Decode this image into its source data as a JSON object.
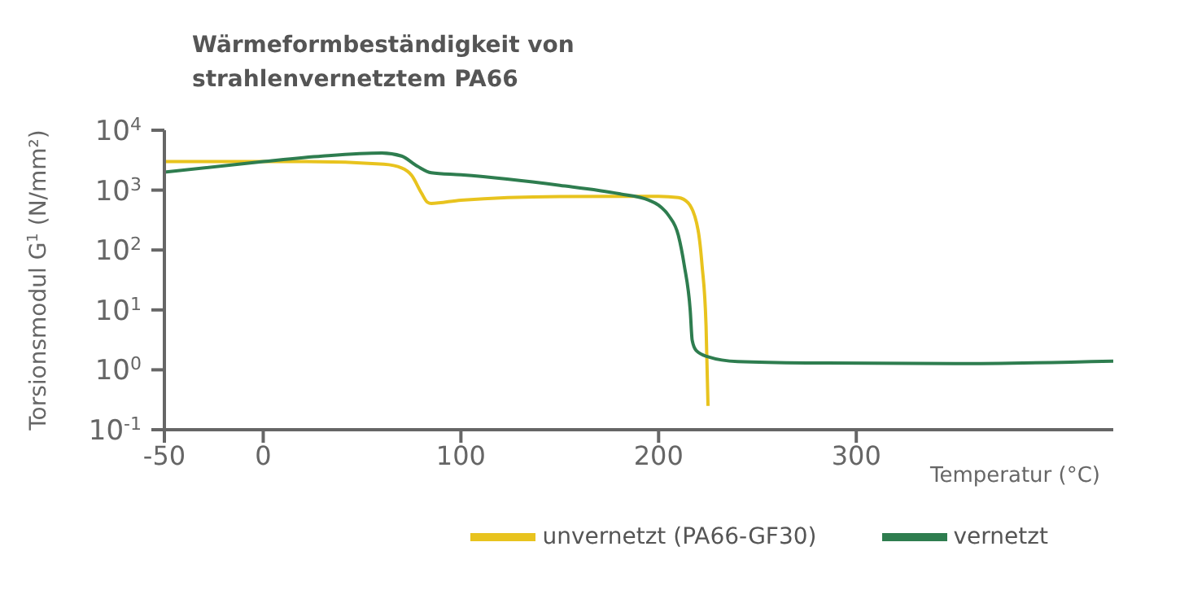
{
  "chart_data": {
    "type": "line",
    "title": "Wärmeformbeständigkeit von\nstrahlenvernetztem PA66",
    "xlabel": "Temperatur (°C)",
    "ylabel": "Torsionsmodul G$^{1}$ (N/mm²)",
    "log": "y",
    "grid": false,
    "legend": "bottom right",
    "marker": "none",
    "line_style": "solid",
    "xlim": [
      -50,
      430
    ],
    "xticks": [
      -50,
      0,
      100,
      200,
      300
    ],
    "ylim": [
      0.1,
      10000
    ],
    "yticks": [
      {
        "value": 0.1,
        "label": "10$^{-1}$"
      },
      {
        "value": 1,
        "label": "10$^{0}$"
      },
      {
        "value": 10,
        "label": "10$^{1}$"
      },
      {
        "value": 100,
        "label": "10$^{2}$"
      },
      {
        "value": 1000,
        "label": "10$^{3}$"
      },
      {
        "value": 10000,
        "label": "10$^{4}$"
      }
    ],
    "series": [
      {
        "name": "unvernetzt (PA66-GF30)",
        "color": "#e8c31e",
        "x": [
          -50,
          0,
          22,
          61,
          70,
          75,
          80,
          83,
          85,
          100,
          150,
          200,
          210,
          215,
          220,
          222,
          224,
          225
        ],
        "values": [
          3000,
          3000,
          3000,
          2700,
          2350,
          1780,
          900,
          630,
          600,
          680,
          780,
          790,
          750,
          610,
          213,
          55,
          5.5,
          0.25
        ]
      },
      {
        "name": "vernetzt",
        "color": "#2e7d4f",
        "x": [
          -50,
          0,
          30,
          60,
          70,
          78,
          85,
          100,
          150,
          180,
          195,
          200,
          205,
          210,
          213,
          216,
          217,
          219,
          225,
          240,
          275,
          350,
          430
        ],
        "values": [
          2000,
          3000,
          3700,
          4150,
          3700,
          2500,
          1950,
          1800,
          1200,
          870,
          680,
          560,
          380,
          175,
          55,
          9.8,
          3.1,
          2.1,
          1.65,
          1.37,
          1.3,
          1.27,
          1.4
        ]
      }
    ]
  }
}
